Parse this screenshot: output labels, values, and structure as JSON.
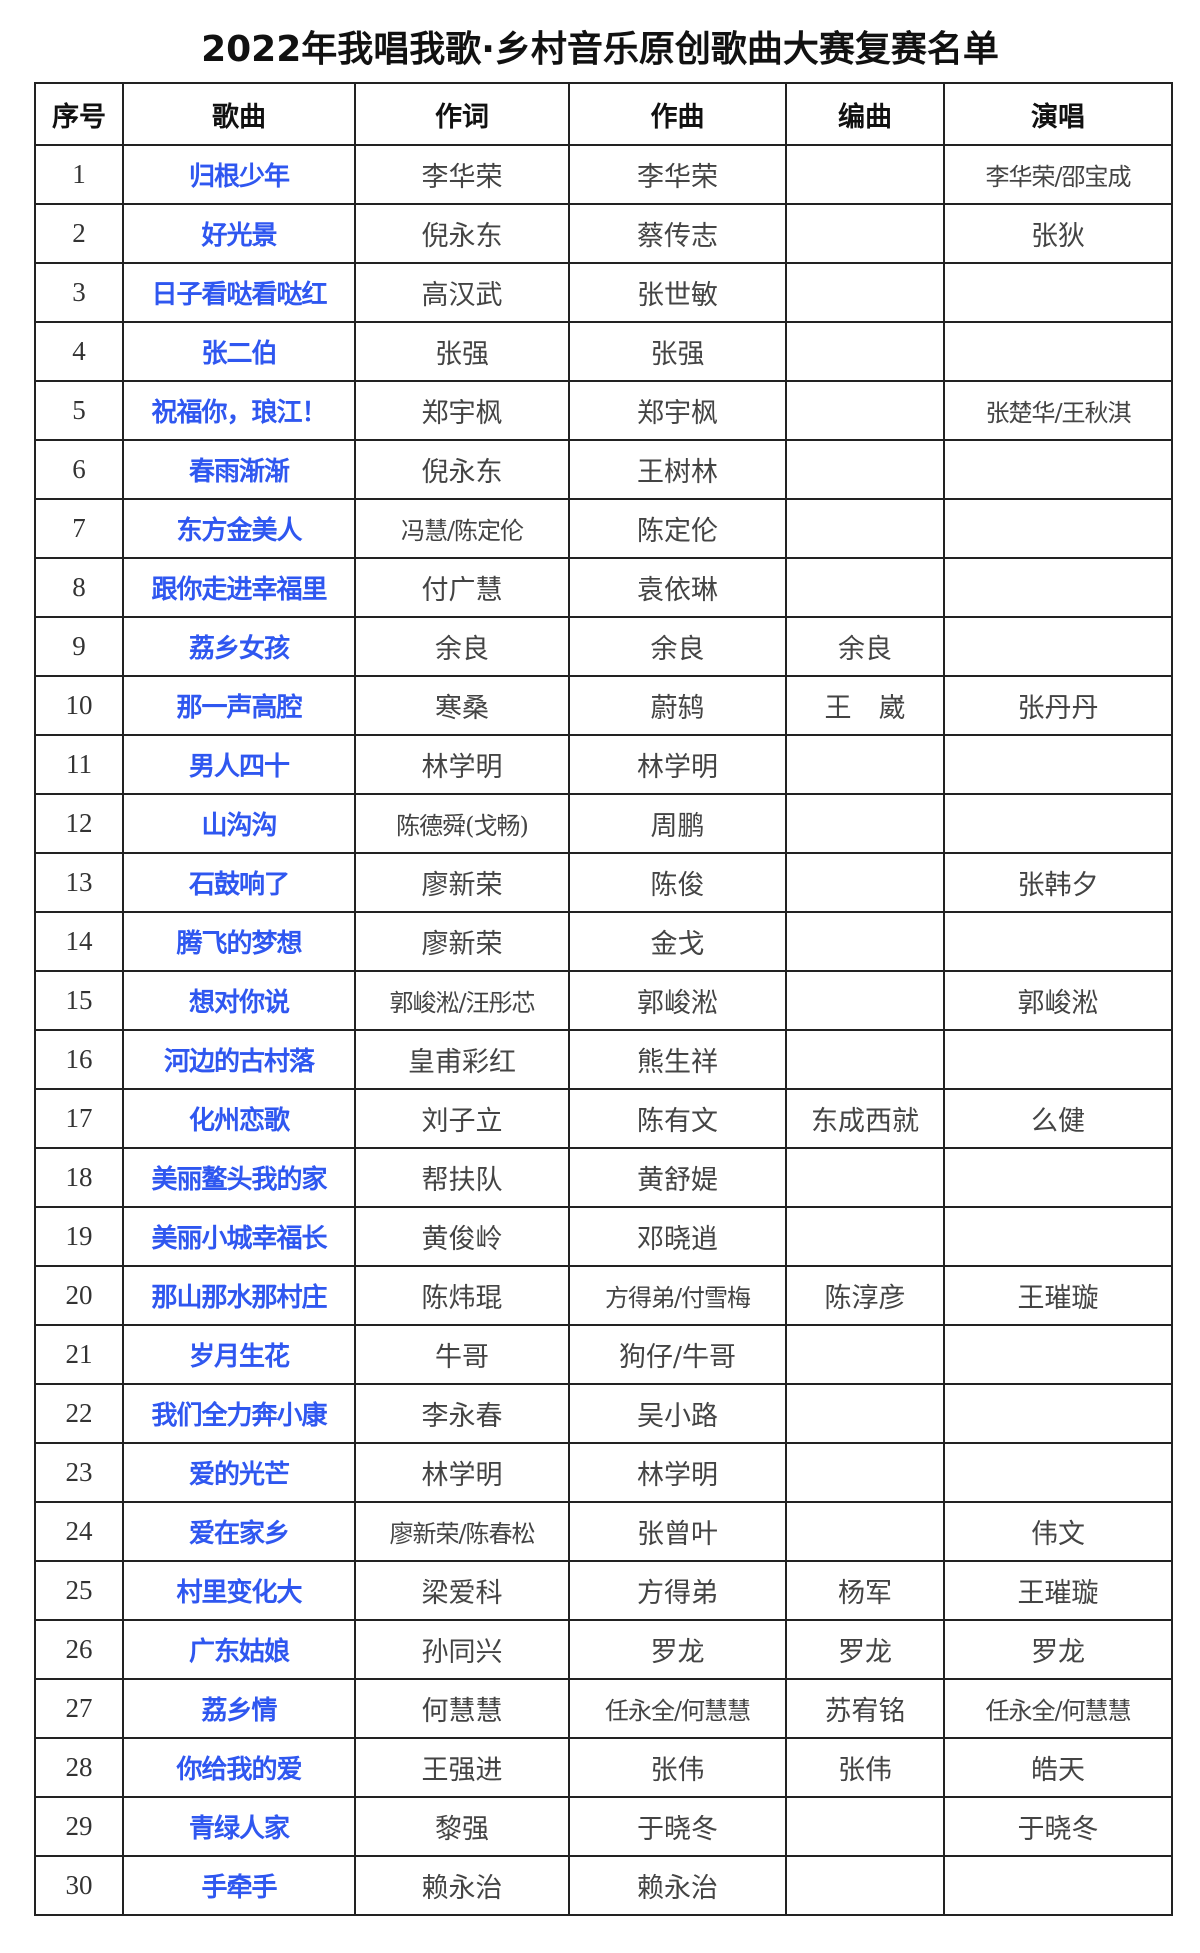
{
  "title": "2022年我唱我歌·乡村音乐原创歌曲大赛复赛名单",
  "headers": [
    "序号",
    "歌曲",
    "作词",
    "作曲",
    "编曲",
    "演唱"
  ],
  "colors": {
    "song_title": "#2f57f0",
    "text": "#444444",
    "border": "#222222"
  },
  "rows": [
    [
      "1",
      "归根少年",
      "李华荣",
      "李华荣",
      "",
      "李华荣/邵宝成"
    ],
    [
      "2",
      "好光景",
      "倪永东",
      "蔡传志",
      "",
      "张狄"
    ],
    [
      "3",
      "日子看哒看哒红",
      "高汉武",
      "张世敏",
      "",
      ""
    ],
    [
      "4",
      "张二伯",
      "张强",
      "张强",
      "",
      ""
    ],
    [
      "5",
      "祝福你，琅江！",
      "郑宇枫",
      "郑宇枫",
      "",
      "张楚华/王秋淇"
    ],
    [
      "6",
      "春雨渐渐",
      "倪永东",
      "王树林",
      "",
      ""
    ],
    [
      "7",
      "东方金美人",
      "冯慧/陈定伦",
      "陈定伦",
      "",
      ""
    ],
    [
      "8",
      "跟你走进幸福里",
      "付广慧",
      "袁依琳",
      "",
      ""
    ],
    [
      "9",
      "荔乡女孩",
      "余良",
      "余良",
      "余良",
      ""
    ],
    [
      "10",
      "那一声高腔",
      "寒桑",
      "蔚鸫",
      "王　崴",
      "张丹丹"
    ],
    [
      "11",
      "男人四十",
      "林学明",
      "林学明",
      "",
      ""
    ],
    [
      "12",
      "山沟沟",
      "陈德舜(戈畅)",
      "周鹏",
      "",
      ""
    ],
    [
      "13",
      "石鼓响了",
      "廖新荣",
      "陈俊",
      "",
      "张韩夕"
    ],
    [
      "14",
      "腾飞的梦想",
      "廖新荣",
      "金戈",
      "",
      ""
    ],
    [
      "15",
      "想对你说",
      "郭峻淞/汪彤芯",
      "郭峻淞",
      "",
      "郭峻淞"
    ],
    [
      "16",
      "河边的古村落",
      "皇甫彩红",
      "熊生祥",
      "",
      ""
    ],
    [
      "17",
      "化州恋歌",
      "刘子立",
      "陈有文",
      "东成西就",
      "么健"
    ],
    [
      "18",
      "美丽鳌头我的家",
      "帮扶队",
      "黄舒媞",
      "",
      ""
    ],
    [
      "19",
      "美丽小城幸福长",
      "黄俊岭",
      "邓晓逍",
      "",
      ""
    ],
    [
      "20",
      "那山那水那村庄",
      "陈炜琨",
      "方得弟/付雪梅",
      "陈淳彦",
      "王璀璇"
    ],
    [
      "21",
      "岁月生花",
      "牛哥",
      "狗仔/牛哥",
      "",
      ""
    ],
    [
      "22",
      "我们全力奔小康",
      "李永春",
      "吴小路",
      "",
      ""
    ],
    [
      "23",
      "爱的光芒",
      "林学明",
      "林学明",
      "",
      ""
    ],
    [
      "24",
      "爱在家乡",
      "廖新荣/陈春松",
      "张曾叶",
      "",
      "伟文"
    ],
    [
      "25",
      "村里变化大",
      "梁爱科",
      "方得弟",
      "杨军",
      "王璀璇"
    ],
    [
      "26",
      "广东姑娘",
      "孙同兴",
      "罗龙",
      "罗龙",
      "罗龙"
    ],
    [
      "27",
      "荔乡情",
      "何慧慧",
      "任永全/何慧慧",
      "苏宥铭",
      "任永全/何慧慧"
    ],
    [
      "28",
      "你给我的爱",
      "王强进",
      "张伟",
      "张伟",
      "皓天"
    ],
    [
      "29",
      "青绿人家",
      "黎强",
      "于晓冬",
      "",
      "于晓冬"
    ],
    [
      "30",
      "手牵手",
      "赖永治",
      "赖永治",
      "",
      ""
    ]
  ]
}
